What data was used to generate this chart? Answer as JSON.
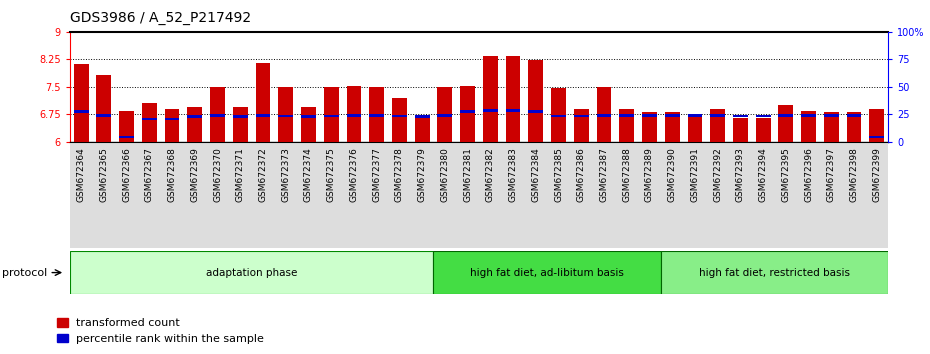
{
  "title": "GDS3986 / A_52_P217492",
  "samples": [
    "GSM672364",
    "GSM672365",
    "GSM672366",
    "GSM672367",
    "GSM672368",
    "GSM672369",
    "GSM672370",
    "GSM672371",
    "GSM672372",
    "GSM672373",
    "GSM672374",
    "GSM672375",
    "GSM672376",
    "GSM672377",
    "GSM672378",
    "GSM672379",
    "GSM672380",
    "GSM672381",
    "GSM672382",
    "GSM672383",
    "GSM672384",
    "GSM672385",
    "GSM672386",
    "GSM672387",
    "GSM672388",
    "GSM672389",
    "GSM672390",
    "GSM672391",
    "GSM672392",
    "GSM672393",
    "GSM672394",
    "GSM672395",
    "GSM672396",
    "GSM672397",
    "GSM672398",
    "GSM672399"
  ],
  "bar_values": [
    8.12,
    7.82,
    6.85,
    7.05,
    6.9,
    6.95,
    7.5,
    6.95,
    8.15,
    7.5,
    6.95,
    7.5,
    7.52,
    7.5,
    7.18,
    6.7,
    7.5,
    7.52,
    8.35,
    8.35,
    8.22,
    7.46,
    6.9,
    7.48,
    6.88,
    6.82,
    6.82,
    6.74,
    6.88,
    6.65,
    6.65,
    7.0,
    6.85,
    6.82,
    6.8,
    6.88
  ],
  "blue_marker_values": [
    6.82,
    6.72,
    6.12,
    6.62,
    6.62,
    6.68,
    6.72,
    6.68,
    6.72,
    6.7,
    6.68,
    6.7,
    6.72,
    6.72,
    6.7,
    6.68,
    6.72,
    6.82,
    6.85,
    6.85,
    6.82,
    6.7,
    6.7,
    6.72,
    6.72,
    6.72,
    6.72,
    6.72,
    6.72,
    6.7,
    6.7,
    6.72,
    6.72,
    6.72,
    6.72,
    6.12
  ],
  "groups": [
    {
      "label": "adaptation phase",
      "start": 0,
      "end": 16,
      "color": "#ccffcc",
      "border": "#008800"
    },
    {
      "label": "high fat diet, ad-libitum basis",
      "start": 16,
      "end": 26,
      "color": "#44dd44",
      "border": "#006600"
    },
    {
      "label": "high fat diet, restricted basis",
      "start": 26,
      "end": 36,
      "color": "#88ee88",
      "border": "#006600"
    }
  ],
  "ylim": [
    6.0,
    9.0
  ],
  "yticks_left": [
    6.0,
    6.75,
    7.5,
    8.25,
    9.0
  ],
  "yticks_right_vals": [
    0,
    25,
    50,
    75,
    100
  ],
  "yticks_right_labels": [
    "0",
    "25",
    "50",
    "75",
    "100%"
  ],
  "hlines": [
    6.75,
    7.5,
    8.25
  ],
  "bar_color": "#cc0000",
  "blue_color": "#0000cc",
  "title_fontsize": 10,
  "tick_fontsize": 7,
  "xtick_fontsize": 6.5
}
